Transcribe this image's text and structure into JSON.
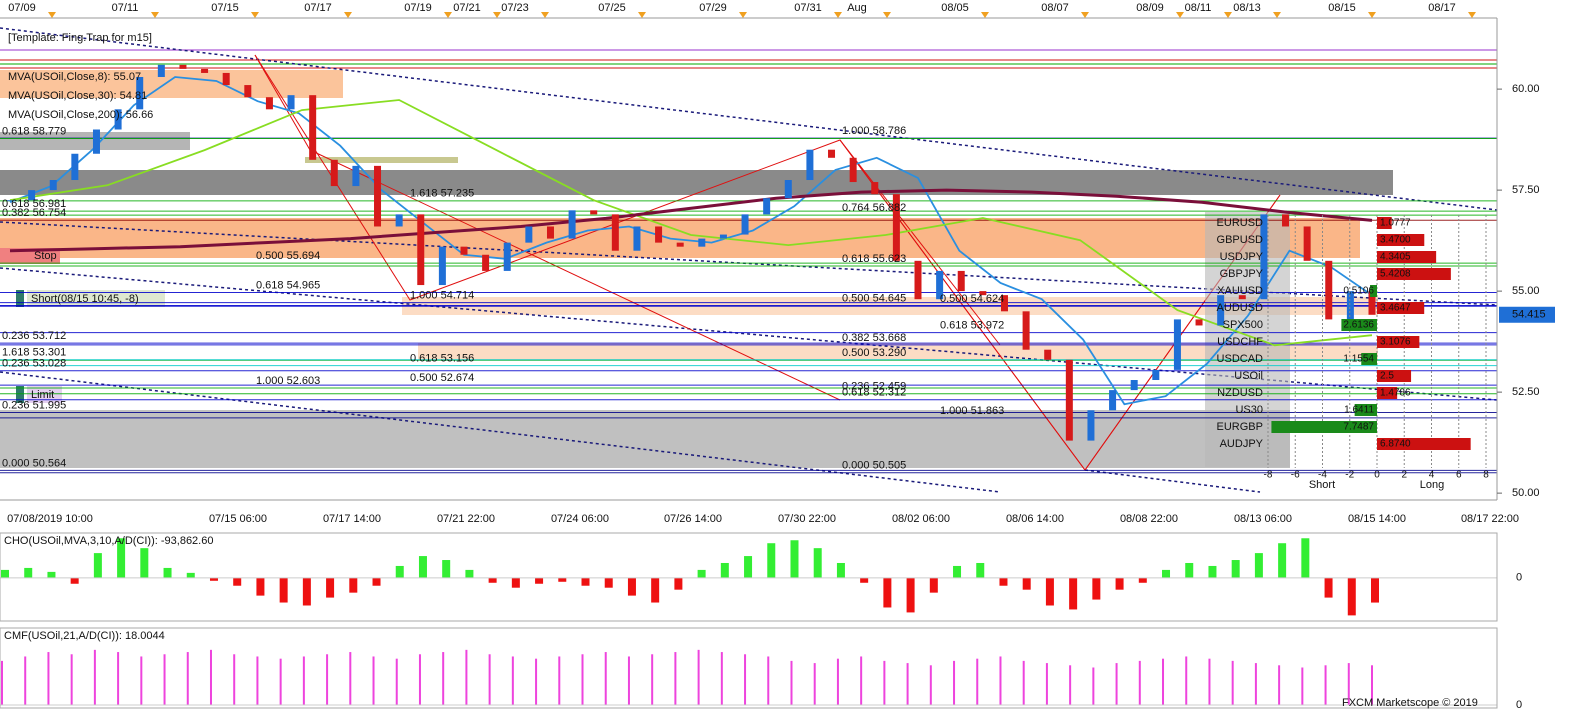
{
  "chart_data": [
    {
      "type": "candlestick",
      "title": "[Template: Fing.Trap for m15]",
      "close": [
        57.25,
        57.5,
        57.75,
        58.4,
        59.0,
        59.5,
        60.3,
        60.6,
        60.5,
        60.4,
        60.1,
        59.8,
        59.5,
        59.85,
        58.25,
        57.6,
        58.1,
        56.6,
        56.9,
        55.15,
        56.1,
        55.9,
        55.5,
        56.2,
        56.6,
        56.3,
        57.0,
        56.9,
        56.0,
        56.6,
        56.2,
        56.1,
        56.3,
        56.4,
        56.9,
        57.3,
        57.75,
        58.5,
        58.3,
        57.7,
        57.4,
        55.75,
        54.8,
        55.5,
        55.0,
        54.9,
        54.5,
        53.55,
        53.3,
        51.3,
        52.05,
        52.55,
        52.8,
        53.05,
        54.3,
        54.15,
        54.9,
        54.8,
        56.9,
        56.6,
        55.75,
        54.3,
        55.0,
        54.415
      ],
      "up_color": "#1f6fd6",
      "down_color": "#d61a1a",
      "ylim": [
        49.83,
        61.76
      ],
      "yticks": [
        {
          "value": 50,
          "label": "50.00"
        },
        {
          "value": 52.5,
          "label": "52.50"
        },
        {
          "value": 55,
          "label": "55.00"
        },
        {
          "value": 57.5,
          "label": "57.50"
        },
        {
          "value": 60,
          "label": "60.00"
        }
      ],
      "last_price": 54.415,
      "top_dates": [
        "07/09",
        "07/11",
        "07/15",
        "07/17",
        "07/19",
        "07/21",
        "07/23",
        "07/25",
        "07/29",
        "07/31",
        "Aug",
        "08/05",
        "08/07",
        "08/09",
        "08/11",
        "08/13",
        "08/15",
        "08/17"
      ],
      "x_labels": [
        "07/08/2019 10:00",
        "07/15 06:00",
        "07/17 14:00",
        "07/21 22:00",
        "07/24 06:00",
        "07/26 14:00",
        "07/30 22:00",
        "08/02 06:00",
        "08/06 14:00",
        "08/08 22:00",
        "08/13 06:00",
        "08/15 14:00",
        "08/17 22:00"
      ],
      "series": [
        {
          "name": "MVA(USOil,Close,8): 55.07",
          "color": "#2a8fe0",
          "values": [
            57.2,
            57.6,
            58.5,
            59.6,
            60.3,
            60.2,
            59.7,
            59.4,
            58.6,
            57.5,
            56.7,
            55.9,
            55.8,
            56.2,
            56.5,
            56.6,
            56.3,
            56.2,
            56.5,
            57.1,
            58.0,
            58.3,
            57.8,
            56.0,
            55.2,
            54.8,
            53.8,
            52.2,
            52.4,
            53.2,
            54.4,
            56.0,
            55.6,
            54.9
          ]
        },
        {
          "name": "MVA(USOil,Close,30): 54.81",
          "color": "#88dd22",
          "values": [
            57.25,
            57.62,
            58.49,
            59.48,
            59.73,
            58.49,
            57.25,
            56.39,
            56.14,
            56.39,
            56.81,
            56.26,
            54.53,
            53.66,
            53.91
          ]
        },
        {
          "name": "MVA(USOil,Close,200): 56.66",
          "color": "#7a0f3a",
          "values": [
            56.0,
            56.05,
            56.1,
            56.2,
            56.3,
            56.45,
            56.6,
            56.8,
            57.05,
            57.3,
            57.45,
            57.5,
            57.45,
            57.35,
            57.2,
            56.95,
            56.75
          ]
        }
      ],
      "levels": [
        {
          "label": "1.000 58.786",
          "value": 58.786,
          "color": "#00008b"
        },
        {
          "label": "1.618 57.235",
          "value": 57.235,
          "color": "#00aa00"
        },
        {
          "label": "0.764 56.882",
          "value": 56.882,
          "color": "#00aa00"
        },
        {
          "label": "0.618 55.623",
          "value": 55.623,
          "color": "#00aa00"
        },
        {
          "label": "0.500 54.645",
          "value": 54.645,
          "color": "#0000cc"
        },
        {
          "label": "0.500 54.624",
          "value": 54.624,
          "color": "#0000cc"
        },
        {
          "label": "0.618 53.972",
          "value": 53.972,
          "color": "#0000cc"
        },
        {
          "label": "0.382 53.668",
          "value": 53.668,
          "color": "#0000cc"
        },
        {
          "label": "0.500 53.290",
          "value": 53.29,
          "color": "#00aa00"
        },
        {
          "label": "0.236 52.459",
          "value": 52.459,
          "color": "#00aa00"
        },
        {
          "label": "0.618 52.312",
          "value": 52.312,
          "color": "#0000cc"
        },
        {
          "label": "1.000 51.863",
          "value": 51.863,
          "color": "#00008b"
        },
        {
          "label": "0.000 50.505",
          "value": 50.505,
          "color": "#00008b"
        },
        {
          "label": "0.500 55.694",
          "value": 55.694,
          "color": "#00aa00"
        },
        {
          "label": "0.618 54.965",
          "value": 54.965,
          "color": "#0000cc"
        },
        {
          "label": "1.000 54.714",
          "value": 54.714,
          "color": "#0000cc"
        },
        {
          "label": "0.618 53.156",
          "value": 53.156,
          "color": "#00cccc"
        },
        {
          "label": "0.500 52.674",
          "value": 52.674,
          "color": "#0000cc"
        },
        {
          "label": "1.000 52.603",
          "value": 52.603,
          "color": "#00aa00"
        },
        {
          "label": "0.236 53.712",
          "value": 53.712,
          "color": "#0000cc"
        },
        {
          "label": "1.618 53.301",
          "value": 53.301,
          "color": "#00cccc"
        },
        {
          "label": "0.236 53.028",
          "value": 53.028,
          "color": "#0000cc"
        },
        {
          "label": "0.236 51.995",
          "value": 51.995,
          "color": "#00008b"
        },
        {
          "label": "0.000 50.564",
          "value": 50.564,
          "color": "#00008b"
        },
        {
          "label": "0.618 58.779",
          "value": 58.779,
          "color": "#00aa00"
        },
        {
          "label": "0.618 56.981",
          "value": 56.981,
          "color": "#00aa00"
        },
        {
          "label": "0.382 56.754",
          "value": 56.754,
          "color": "#8b0000"
        }
      ],
      "annotations": [
        "Stop",
        "Short(08/15 10:45, -8)",
        "Limit"
      ],
      "source": "FXCM Marketscope © 2019"
    },
    {
      "type": "hbar",
      "categories": [
        "EURUSD",
        "GBPUSD",
        "USDJPY",
        "GBPJPY",
        "XAUUSD",
        "AUDUSD",
        "SPX500",
        "USDCHF",
        "USDCAD",
        "USOil",
        "NZDUSD",
        "US30",
        "EURGBP",
        "AUDJPY"
      ],
      "values": [
        1.0777,
        3.47,
        4.3405,
        5.4208,
        -0.5106,
        3.4647,
        -2.6136,
        3.1076,
        -1.1554,
        2.5,
        1.4786,
        -1.6411,
        -7.7487,
        6.874
      ],
      "value_labels": [
        "1.0777",
        "3.4700",
        "4.3405",
        "5.4208",
        "0.5106",
        "3.4647",
        "2.6136",
        "3.1076",
        "1.1554",
        "2.5",
        "1.4786",
        "1.6411",
        "7.7487",
        "6.8740"
      ],
      "positive_color": "#cc1111",
      "negative_color": "#1a8a1a",
      "xlim": [
        -8.1,
        8.1
      ],
      "xticks": [
        -8,
        -6,
        -4,
        -2,
        0,
        2,
        4,
        6,
        8
      ],
      "xlabel_left": "Short",
      "xlabel_right": "Long"
    },
    {
      "type": "bar",
      "title": "CHO(USOil,MVA,3,10,A/D(CI)): -93,862.60",
      "values": [
        30000,
        37500,
        22500,
        -22500,
        93750,
        150000,
        112500,
        37500,
        18750,
        -11250,
        -30000,
        -67500,
        -93750,
        -105000,
        -75000,
        -56250,
        -30000,
        45000,
        82500,
        67500,
        30000,
        -18750,
        -37500,
        -22500,
        -15000,
        -30000,
        -37500,
        -67500,
        -93750,
        -45000,
        30000,
        56250,
        82500,
        131250,
        142500,
        112500,
        56250,
        -18750,
        -112500,
        -131250,
        -56250,
        45000,
        56250,
        -30000,
        -45000,
        -105000,
        -120000,
        -82500,
        -45000,
        -18750,
        30000,
        56250,
        45000,
        67500,
        93750,
        131250,
        150000,
        -75000,
        -142500,
        -93862.6
      ],
      "positive_color": "#33ee33",
      "negative_color": "#ee1111",
      "ylim": [
        -160000,
        170000
      ],
      "yticks": [
        0
      ]
    },
    {
      "type": "bar",
      "title": "CMF(USOil,21,A/D(CI)): 18.0044",
      "values": [
        20,
        22,
        24,
        23,
        25,
        24,
        22,
        23,
        24,
        25,
        23,
        22,
        21,
        22,
        23,
        24,
        22,
        21,
        23,
        24,
        25,
        23,
        22,
        21,
        22,
        23,
        24,
        22,
        23,
        24,
        25,
        24,
        23,
        22,
        20,
        19,
        21,
        22,
        20,
        19,
        18,
        20,
        21,
        22,
        20,
        19,
        18,
        17,
        19,
        20,
        21,
        22,
        21,
        20,
        19,
        18,
        17,
        18,
        19,
        18.0044
      ],
      "positive_color": "#ee44dd",
      "negative_color": "#ee44dd",
      "ylim": [
        0,
        34
      ],
      "yticks": [
        0
      ]
    }
  ]
}
